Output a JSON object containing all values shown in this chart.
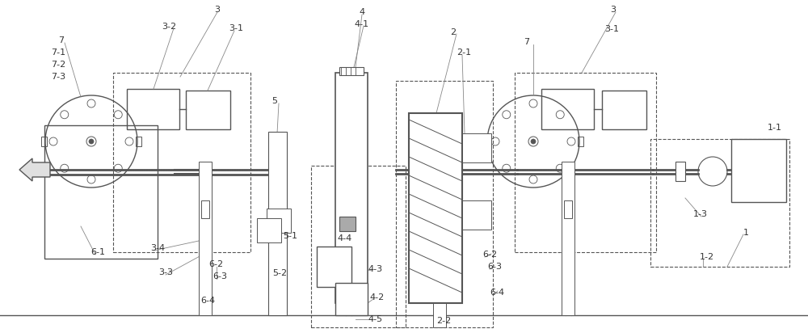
{
  "fig_width": 10.0,
  "fig_height": 4.12,
  "dpi": 100,
  "bg_color": "#ffffff",
  "lc": "#555555",
  "lw": 0.8,
  "fs": 7.0,
  "fc": "#333333"
}
